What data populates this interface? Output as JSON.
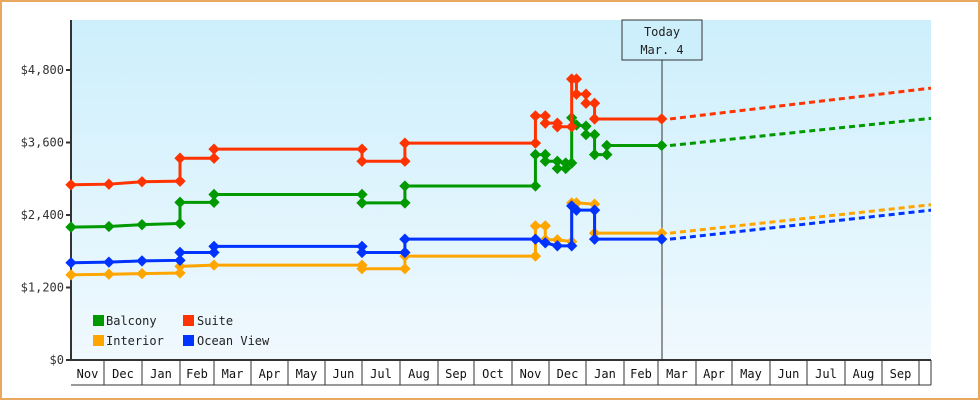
{
  "chart_data": {
    "type": "line",
    "title": "",
    "xlabel": "",
    "ylabel": "",
    "ylim": [
      0,
      5600
    ],
    "y_ticks": [
      "$0",
      "$1,200",
      "$2,400",
      "$3,600",
      "$4,800"
    ],
    "y_tick_values": [
      0,
      1200,
      2400,
      3600,
      4800
    ],
    "x_ticks": [
      "Nov",
      "Dec",
      "Jan",
      "Feb",
      "Mar",
      "Apr",
      "May",
      "Jun",
      "Jul",
      "Aug",
      "Sep",
      "Oct",
      "Nov",
      "Dec",
      "Jan",
      "Feb",
      "Mar",
      "Apr",
      "May",
      "Jun",
      "Jul",
      "Aug",
      "Sep"
    ],
    "grid": false,
    "legend_position": "lower-left",
    "annotation": {
      "line1": "Today",
      "line2": "Mar. 4"
    },
    "line_style": "step with markers; dashed forecast after today",
    "series": [
      {
        "name": "Balcony",
        "color": "#009900",
        "points": [
          {
            "x": "Nov 1",
            "y": 2200
          },
          {
            "x": "Dec 5",
            "y": 2210
          },
          {
            "x": "Jan 1",
            "y": 2240
          },
          {
            "x": "Feb 1",
            "y": 2260
          },
          {
            "x": "Feb 1",
            "y": 2610
          },
          {
            "x": "Mar 1",
            "y": 2610
          },
          {
            "x": "Mar 1",
            "y": 2740
          },
          {
            "x": "Jul 1",
            "y": 2740
          },
          {
            "x": "Jul 1",
            "y": 2600
          },
          {
            "x": "Aug 5",
            "y": 2600
          },
          {
            "x": "Aug 5",
            "y": 2880
          },
          {
            "x": "Nov 20",
            "y": 2880
          },
          {
            "x": "Nov 20",
            "y": 3400
          },
          {
            "x": "Nov 28",
            "y": 3400
          },
          {
            "x": "Nov 28",
            "y": 3290
          },
          {
            "x": "Dec 8",
            "y": 3290
          },
          {
            "x": "Dec 8",
            "y": 3170
          },
          {
            "x": "Dec 15",
            "y": 3170
          },
          {
            "x": "Dec 15",
            "y": 3260
          },
          {
            "x": "Dec 20",
            "y": 3260
          },
          {
            "x": "Dec 20",
            "y": 4010
          },
          {
            "x": "Dec 24",
            "y": 3890
          },
          {
            "x": "Jan 1",
            "y": 3870
          },
          {
            "x": "Jan 1",
            "y": 3730
          },
          {
            "x": "Jan 8",
            "y": 3730
          },
          {
            "x": "Jan 8",
            "y": 3400
          },
          {
            "x": "Jan 18",
            "y": 3400
          },
          {
            "x": "Jan 18",
            "y": 3550
          },
          {
            "x": "Mar 4",
            "y": 3550
          }
        ],
        "forecast": [
          {
            "x": "Mar 4",
            "y": 3550
          },
          {
            "x": "Sep 30",
            "y": 4000
          }
        ]
      },
      {
        "name": "Suite",
        "color": "#ff3300",
        "points": [
          {
            "x": "Nov 1",
            "y": 2900
          },
          {
            "x": "Dec 5",
            "y": 2910
          },
          {
            "x": "Jan 1",
            "y": 2950
          },
          {
            "x": "Feb 1",
            "y": 2960
          },
          {
            "x": "Feb 1",
            "y": 3340
          },
          {
            "x": "Mar 1",
            "y": 3340
          },
          {
            "x": "Mar 1",
            "y": 3490
          },
          {
            "x": "Jul 1",
            "y": 3490
          },
          {
            "x": "Jul 1",
            "y": 3290
          },
          {
            "x": "Aug 5",
            "y": 3290
          },
          {
            "x": "Aug 5",
            "y": 3590
          },
          {
            "x": "Nov 20",
            "y": 3590
          },
          {
            "x": "Nov 20",
            "y": 4040
          },
          {
            "x": "Nov 28",
            "y": 4040
          },
          {
            "x": "Nov 28",
            "y": 3920
          },
          {
            "x": "Dec 8",
            "y": 3920
          },
          {
            "x": "Dec 8",
            "y": 3860
          },
          {
            "x": "Dec 20",
            "y": 3860
          },
          {
            "x": "Dec 20",
            "y": 4650
          },
          {
            "x": "Dec 24",
            "y": 4650
          },
          {
            "x": "Dec 24",
            "y": 4400
          },
          {
            "x": "Jan 1",
            "y": 4400
          },
          {
            "x": "Jan 1",
            "y": 4250
          },
          {
            "x": "Jan 8",
            "y": 4250
          },
          {
            "x": "Jan 8",
            "y": 3990
          },
          {
            "x": "Mar 4",
            "y": 3990
          }
        ],
        "forecast": [
          {
            "x": "Mar 4",
            "y": 3990
          },
          {
            "x": "Sep 30",
            "y": 4500
          }
        ]
      },
      {
        "name": "Interior",
        "color": "#ffa500",
        "points": [
          {
            "x": "Nov 1",
            "y": 1410
          },
          {
            "x": "Dec 5",
            "y": 1420
          },
          {
            "x": "Jan 1",
            "y": 1430
          },
          {
            "x": "Feb 1",
            "y": 1440
          },
          {
            "x": "Feb 1",
            "y": 1550
          },
          {
            "x": "Mar 1",
            "y": 1570
          },
          {
            "x": "Jul 1",
            "y": 1570
          },
          {
            "x": "Jul 1",
            "y": 1510
          },
          {
            "x": "Aug 5",
            "y": 1510
          },
          {
            "x": "Aug 5",
            "y": 1720
          },
          {
            "x": "Nov 20",
            "y": 1720
          },
          {
            "x": "Nov 20",
            "y": 2220
          },
          {
            "x": "Nov 28",
            "y": 2220
          },
          {
            "x": "Nov 28",
            "y": 1990
          },
          {
            "x": "Dec 8",
            "y": 1990
          },
          {
            "x": "Dec 20",
            "y": 1960
          },
          {
            "x": "Dec 20",
            "y": 2600
          },
          {
            "x": "Dec 24",
            "y": 2600
          },
          {
            "x": "Jan 8",
            "y": 2580
          },
          {
            "x": "Jan 8",
            "y": 2100
          },
          {
            "x": "Mar 4",
            "y": 2100
          }
        ],
        "forecast": [
          {
            "x": "Mar 4",
            "y": 2100
          },
          {
            "x": "Sep 30",
            "y": 2570
          }
        ]
      },
      {
        "name": "Ocean View",
        "color": "#0033ff",
        "points": [
          {
            "x": "Nov 1",
            "y": 1610
          },
          {
            "x": "Dec 5",
            "y": 1620
          },
          {
            "x": "Jan 1",
            "y": 1640
          },
          {
            "x": "Feb 1",
            "y": 1650
          },
          {
            "x": "Feb 1",
            "y": 1780
          },
          {
            "x": "Mar 1",
            "y": 1780
          },
          {
            "x": "Mar 1",
            "y": 1880
          },
          {
            "x": "Jul 1",
            "y": 1880
          },
          {
            "x": "Jul 1",
            "y": 1780
          },
          {
            "x": "Aug 5",
            "y": 1780
          },
          {
            "x": "Aug 5",
            "y": 2000
          },
          {
            "x": "Nov 20",
            "y": 2000
          },
          {
            "x": "Nov 28",
            "y": 1940
          },
          {
            "x": "Dec 8",
            "y": 1890
          },
          {
            "x": "Dec 20",
            "y": 1890
          },
          {
            "x": "Dec 20",
            "y": 2550
          },
          {
            "x": "Dec 24",
            "y": 2480
          },
          {
            "x": "Jan 8",
            "y": 2480
          },
          {
            "x": "Jan 8",
            "y": 2000
          },
          {
            "x": "Mar 4",
            "y": 2000
          }
        ],
        "forecast": [
          {
            "x": "Mar 4",
            "y": 2000
          },
          {
            "x": "Sep 30",
            "y": 2480
          }
        ]
      }
    ]
  },
  "legend": {
    "items": [
      {
        "label": "Balcony",
        "color": "#009900"
      },
      {
        "label": "Suite",
        "color": "#ff3300"
      },
      {
        "label": "Interior",
        "color": "#ffa500"
      },
      {
        "label": "Ocean View",
        "color": "#0033ff"
      }
    ]
  },
  "today_marker": {
    "line1": "Today",
    "line2": "Mar. 4"
  },
  "axis": {
    "y_labels": [
      "$0",
      "$1,200",
      "$2,400",
      "$3,600",
      "$4,800"
    ],
    "x_labels": [
      "Nov",
      "Dec",
      "Jan",
      "Feb",
      "Mar",
      "Apr",
      "May",
      "Jun",
      "Jul",
      "Aug",
      "Sep",
      "Oct",
      "Nov",
      "Dec",
      "Jan",
      "Feb",
      "Mar",
      "Apr",
      "May",
      "Jun",
      "Jul",
      "Aug",
      "Sep"
    ]
  },
  "colors": {
    "border": "#e8a860",
    "plot_bg_top": "#cdeffc",
    "plot_bg_bottom": "#f0f9fe",
    "axis": "#333333"
  }
}
